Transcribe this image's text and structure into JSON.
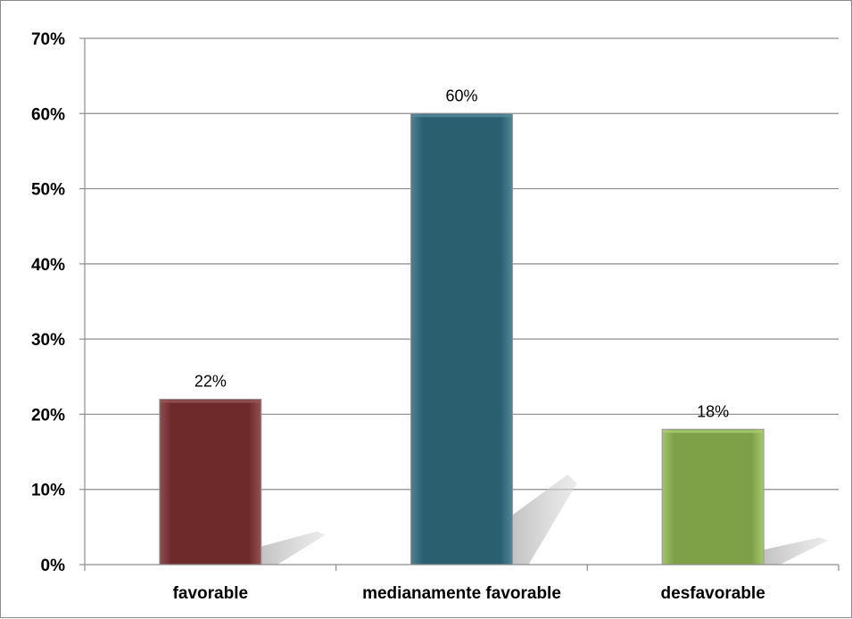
{
  "chart_data": {
    "type": "bar",
    "categories": [
      "favorable",
      "medianamente favorable",
      "desfavorable"
    ],
    "values": [
      22,
      60,
      18
    ],
    "data_labels": [
      "22%",
      "60%",
      "18%"
    ],
    "colors": [
      "#6e2a2a",
      "#2a5f70",
      "#7ea047"
    ],
    "ylim": [
      0,
      70
    ],
    "yticks": [
      0,
      10,
      20,
      30,
      40,
      50,
      60,
      70
    ],
    "ytick_labels": [
      "0%",
      "10%",
      "20%",
      "30%",
      "40%",
      "50%",
      "60%",
      "70%"
    ],
    "grid": true,
    "legend": "none",
    "title": "",
    "xlabel": "",
    "ylabel": ""
  }
}
